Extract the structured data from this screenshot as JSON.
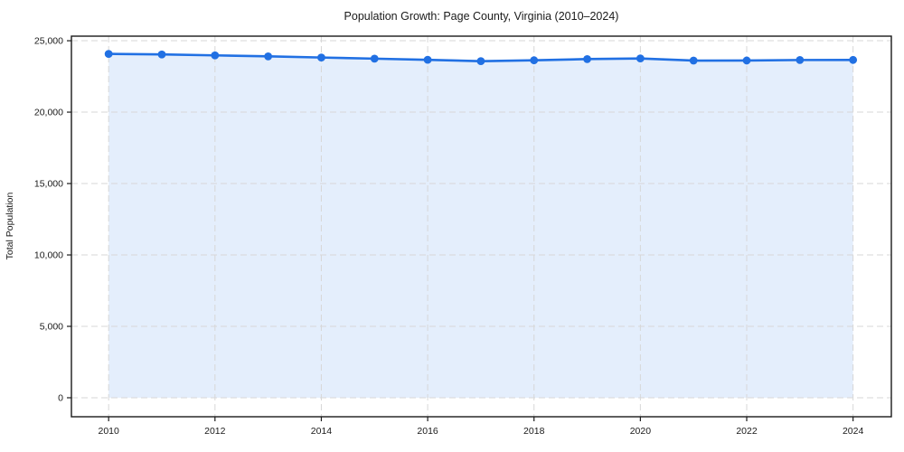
{
  "chart_data": {
    "type": "line",
    "title": "Population Growth: Page County, Virginia (2010–2024)",
    "xlabel": "",
    "ylabel": "Total Population",
    "x": [
      2010,
      2011,
      2012,
      2013,
      2014,
      2015,
      2016,
      2017,
      2018,
      2019,
      2020,
      2021,
      2022,
      2023,
      2024
    ],
    "values": [
      24080,
      24040,
      23975,
      23905,
      23825,
      23745,
      23665,
      23570,
      23630,
      23715,
      23760,
      23610,
      23615,
      23650,
      23655
    ],
    "x_ticks": [
      2010,
      2012,
      2014,
      2016,
      2018,
      2020,
      2022,
      2024
    ],
    "x_tick_labels": [
      "2010",
      "2012",
      "2014",
      "2016",
      "2018",
      "2020",
      "2022",
      "2024"
    ],
    "y_ticks": [
      0,
      5000,
      10000,
      15000,
      20000,
      25000
    ],
    "y_tick_labels": [
      "0",
      "5,000",
      "10,000",
      "15,000",
      "20,000",
      "25,000"
    ],
    "xlim": [
      2009.3,
      2024.72
    ],
    "ylim": [
      -1330,
      25320
    ],
    "grid": true,
    "legend_position": "none",
    "colors": {
      "line": "#2170e3",
      "marker": "#2170e3",
      "area_fill": "#e4eefc",
      "grid": "#d7d7d7",
      "spine": "#1a1a1a",
      "text": "#1a1a1a",
      "background": "#ffffff"
    }
  }
}
